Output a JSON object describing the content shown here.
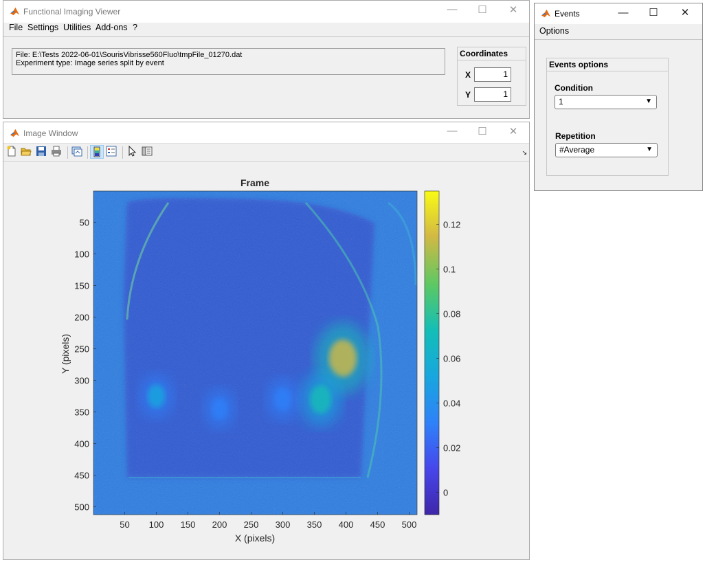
{
  "main_window": {
    "title": "Functional Imaging Viewer",
    "menu": [
      "File",
      "Settings",
      "Utilities",
      "Add-ons",
      "?"
    ],
    "file_info": {
      "line1": "File: E:\\Tests 2022-06-01\\SourisVibrisse560Fluo\\tmpFile_01270.dat",
      "line2": "Experiment type: Image series split by event"
    },
    "coordinates": {
      "title": "Coordinates",
      "x_label": "X",
      "x_value": "1",
      "y_label": "Y",
      "y_value": "1"
    }
  },
  "events_window": {
    "title": "Events",
    "menu": [
      "Options"
    ],
    "group_title": "Events options",
    "condition_label": "Condition",
    "condition_value": "1",
    "repetition_label": "Repetition",
    "repetition_value": "#Average"
  },
  "image_window": {
    "title": "Image Window",
    "toolbar": [
      "new-figure-icon",
      "open-file-icon",
      "save-icon",
      "print-icon",
      "link-plot-icon",
      "colorbar-icon",
      "legend-icon",
      "pointer-icon",
      "property-inspector-icon"
    ],
    "colors": {
      "toggle_on": "#cce4f7",
      "accent": "#0072bd"
    }
  },
  "chart_data": {
    "type": "heatmap",
    "title": "Frame",
    "xlabel": "X (pixels)",
    "ylabel": "Y (pixels)",
    "xlim": [
      0.5,
      512.5
    ],
    "ylim": [
      0.5,
      512.5
    ],
    "x_ticks": [
      "50",
      "100",
      "150",
      "200",
      "250",
      "300",
      "350",
      "400",
      "450",
      "500"
    ],
    "y_ticks": [
      "50",
      "100",
      "150",
      "200",
      "250",
      "300",
      "350",
      "400",
      "450",
      "500"
    ],
    "colormap": "parula",
    "color_range": [
      -0.01,
      0.135
    ],
    "colorbar_ticks": [
      "0",
      "0.02",
      "0.04",
      "0.06",
      "0.08",
      "0.1",
      "0.12"
    ],
    "hotspots": [
      {
        "label": "main",
        "x": 395,
        "y": 265,
        "value": 0.12
      },
      {
        "label": "right-lower",
        "x": 360,
        "y": 330,
        "value": 0.08
      },
      {
        "label": "left",
        "x": 100,
        "y": 325,
        "value": 0.055
      },
      {
        "label": "center",
        "x": 300,
        "y": 330,
        "value": 0.05
      },
      {
        "label": "center-left",
        "x": 200,
        "y": 345,
        "value": 0.045
      }
    ]
  }
}
